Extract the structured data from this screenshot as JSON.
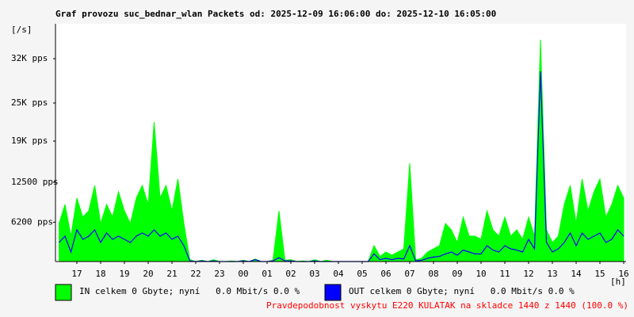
{
  "chart_data": {
    "type": "area",
    "title": "Graf provozu suc_bednar_wlan Packets od: 2025-12-09 16:06:00 do: 2025-12-10 16:05:00",
    "y_label": "[/s]",
    "x_label": "[h]",
    "footer": "Pravdepodobnost vyskytu E220 KULATAK na skladce 1440 z 1440 (100.0 %)",
    "xlim": [
      16.1,
      40.1
    ],
    "xticks": [
      17,
      18,
      19,
      20,
      21,
      22,
      23,
      {
        "value": 24,
        "label": "00"
      },
      {
        "value": 25,
        "label": "01"
      },
      {
        "value": 26,
        "label": "02"
      },
      {
        "value": 27,
        "label": "03"
      },
      {
        "value": 28,
        "label": "04"
      },
      {
        "value": 29,
        "label": "05"
      },
      {
        "value": 30,
        "label": "06"
      },
      {
        "value": 31,
        "label": "07"
      },
      {
        "value": 32,
        "label": "08"
      },
      {
        "value": 33,
        "label": "09"
      },
      {
        "value": 34,
        "label": "10"
      },
      {
        "value": 35,
        "label": "11"
      },
      {
        "value": 36,
        "label": "12"
      },
      {
        "value": 37,
        "label": "13"
      },
      {
        "value": 38,
        "label": "14"
      },
      {
        "value": 39,
        "label": "15"
      },
      {
        "value": 40,
        "label": "16"
      }
    ],
    "ylim": [
      0,
      37500
    ],
    "yticks": [
      {
        "value": 6200,
        "label": "6200 pps"
      },
      {
        "value": 12500,
        "label": "12500 pps"
      },
      {
        "value": 19000,
        "label": "19K pps"
      },
      {
        "value": 25000,
        "label": "25K pps"
      },
      {
        "value": 32000,
        "label": "32K pps"
      }
    ],
    "grid": false,
    "x": [
      16.25,
      16.5,
      16.75,
      17,
      17.25,
      17.5,
      17.75,
      18,
      18.25,
      18.5,
      18.75,
      19,
      19.25,
      19.5,
      19.75,
      20,
      20.25,
      20.5,
      20.75,
      21,
      21.25,
      21.5,
      21.75,
      22,
      22.25,
      22.5,
      22.75,
      23,
      23.25,
      23.5,
      23.75,
      24,
      24.25,
      24.5,
      24.75,
      25,
      25.25,
      25.5,
      25.75,
      26,
      26.25,
      26.5,
      26.75,
      27,
      27.25,
      27.5,
      27.75,
      28,
      28.25,
      28.5,
      28.75,
      29,
      29.25,
      29.5,
      29.75,
      30,
      30.25,
      30.5,
      30.75,
      31,
      31.25,
      31.5,
      31.75,
      32,
      32.25,
      32.5,
      32.75,
      33,
      33.25,
      33.5,
      33.75,
      34,
      34.25,
      34.5,
      34.75,
      35,
      35.25,
      35.5,
      35.75,
      36,
      36.25,
      36.5,
      36.75,
      37,
      37.25,
      37.5,
      37.75,
      38,
      38.25,
      38.5,
      38.75,
      39,
      39.25,
      39.5,
      39.75,
      40
    ],
    "series": [
      {
        "name": "IN celkem 0 Gbyte; nyní   0.0 Mbit/s 0.0 %",
        "color": "#00ff00",
        "style": "area",
        "values": [
          6000,
          9000,
          4000,
          10000,
          7000,
          8000,
          12000,
          6000,
          9000,
          7000,
          11000,
          8000,
          6000,
          10000,
          12000,
          9000,
          22000,
          10000,
          12000,
          8000,
          13000,
          6000,
          300,
          0,
          200,
          0,
          300,
          0,
          0,
          100,
          0,
          200,
          0,
          400,
          0,
          0,
          200,
          8000,
          200,
          300,
          0,
          100,
          0,
          300,
          0,
          200,
          0,
          0,
          0,
          0,
          0,
          0,
          0,
          2500,
          800,
          1500,
          1000,
          1500,
          2000,
          15500,
          300,
          500,
          1500,
          2000,
          2500,
          6000,
          5000,
          3000,
          7000,
          4000,
          4000,
          3500,
          8000,
          5000,
          4000,
          7000,
          4000,
          5000,
          3500,
          7000,
          4000,
          35000,
          5000,
          3000,
          4000,
          9000,
          12000,
          6000,
          13000,
          8000,
          11000,
          13000,
          7000,
          9000,
          12000,
          10000
        ]
      },
      {
        "name": "OUT celkem 0 Gbyte; nyní   0.0 Mbit/s 0.0 %",
        "color": "#0000ff",
        "style": "line",
        "values": [
          3000,
          4000,
          1500,
          5000,
          3500,
          4000,
          5000,
          3000,
          4500,
          3500,
          4000,
          3500,
          3000,
          4000,
          4500,
          4000,
          5000,
          4000,
          4500,
          3500,
          4000,
          2500,
          100,
          0,
          100,
          0,
          100,
          0,
          0,
          0,
          0,
          100,
          0,
          300,
          0,
          0,
          100,
          600,
          100,
          100,
          0,
          0,
          0,
          100,
          0,
          0,
          0,
          0,
          0,
          0,
          0,
          0,
          0,
          1200,
          300,
          500,
          300,
          500,
          400,
          2500,
          100,
          200,
          500,
          700,
          800,
          1200,
          1500,
          1000,
          1800,
          1500,
          1200,
          1200,
          2500,
          1800,
          1500,
          2500,
          2000,
          1800,
          1500,
          3500,
          2000,
          30000,
          3000,
          1500,
          2000,
          3000,
          4500,
          2500,
          4500,
          3500,
          4000,
          4500,
          3000,
          3500,
          5000,
          4000
        ]
      }
    ]
  }
}
